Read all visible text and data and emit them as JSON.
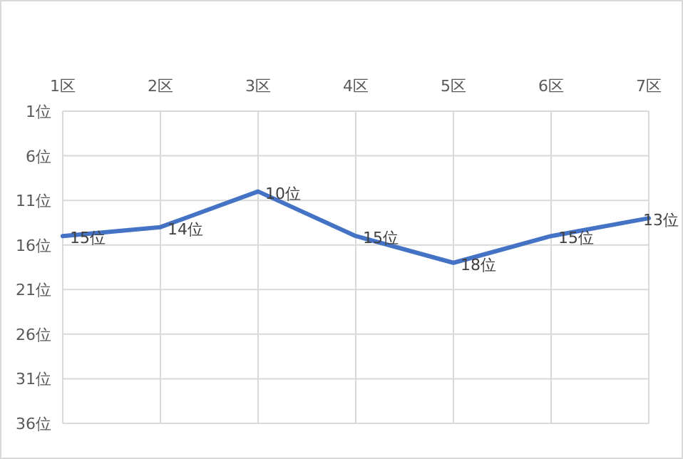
{
  "chart_data": {
    "type": "line",
    "categories": [
      "1区",
      "2区",
      "3区",
      "4区",
      "5区",
      "6区",
      "7区"
    ],
    "series": [
      {
        "color": "#4472c4",
        "values": [
          15,
          14,
          10,
          15,
          18,
          15,
          13
        ],
        "value_labels": [
          "15位",
          "14位",
          "10位",
          "15位",
          "18位",
          "15位",
          "13位"
        ]
      }
    ],
    "ylim": [
      36,
      1
    ],
    "yticks": [
      {
        "value": 1,
        "label": "1位"
      },
      {
        "value": 6,
        "label": "6位"
      },
      {
        "value": 11,
        "label": "11位"
      },
      {
        "value": 16,
        "label": "16位"
      },
      {
        "value": 21,
        "label": "21位"
      },
      {
        "value": 26,
        "label": "26位"
      },
      {
        "value": 31,
        "label": "31位"
      },
      {
        "value": 36,
        "label": "36位"
      }
    ],
    "grid": true
  }
}
